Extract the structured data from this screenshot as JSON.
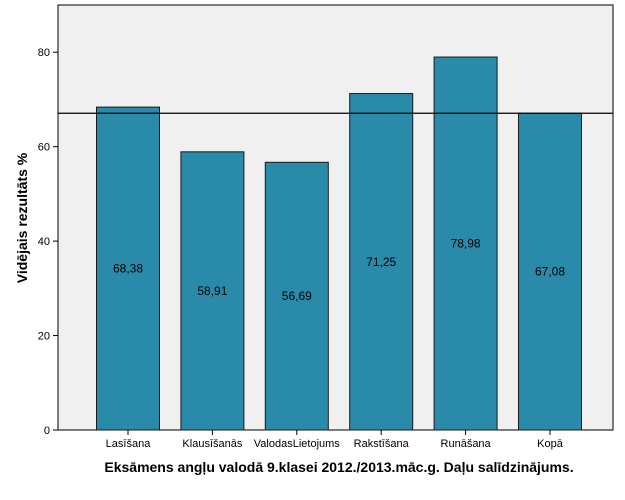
{
  "chart_data": {
    "type": "bar",
    "title": "",
    "xlabel": "Eksāmens angļu valodā 9.klasei 2012./2013.māc.g. Daļu salīdzinājums.",
    "ylabel": "Vidējais rezultāts %",
    "categories": [
      "Lasīšana",
      "Klausīšanās",
      "ValodasLietojums",
      "Rakstīšana",
      "Runāšana",
      "Kopā"
    ],
    "values": [
      68.38,
      58.91,
      56.69,
      71.25,
      78.98,
      67.08
    ],
    "data_labels": [
      "68,38",
      "58,91",
      "56,69",
      "71,25",
      "78,98",
      "67,08"
    ],
    "ylim": [
      0,
      90
    ],
    "yticks": [
      0,
      20,
      40,
      60,
      80
    ],
    "reference_line": 67.08,
    "grid": false,
    "colors": {
      "bar": "#2a8aaa",
      "bar_edge": "#1a1a1a",
      "plot_background": "#f0f0f0",
      "reference_line": "#000000"
    }
  }
}
